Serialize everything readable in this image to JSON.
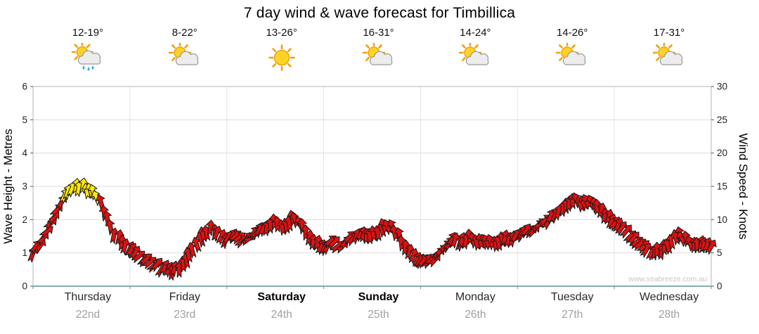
{
  "title": "7 day wind & wave forecast for Timbillica",
  "watermark": "www.seabreeze.com.au",
  "days": [
    {
      "name": "Thursday",
      "date": "22nd",
      "temp": "12-19°",
      "icon": "sun-cloud-rain",
      "weekend": false
    },
    {
      "name": "Friday",
      "date": "23rd",
      "temp": "8-22°",
      "icon": "sun-cloud",
      "weekend": false
    },
    {
      "name": "Saturday",
      "date": "24th",
      "temp": "13-26°",
      "icon": "sun",
      "weekend": true
    },
    {
      "name": "Sunday",
      "date": "25th",
      "temp": "16-31°",
      "icon": "sun-cloud",
      "weekend": true
    },
    {
      "name": "Monday",
      "date": "26th",
      "temp": "14-24°",
      "icon": "sun-cloud",
      "weekend": false
    },
    {
      "name": "Tuesday",
      "date": "27th",
      "temp": "14-26°",
      "icon": "sun-cloud",
      "weekend": false
    },
    {
      "name": "Wednesday",
      "date": "28th",
      "temp": "17-31°",
      "icon": "sun-cloud",
      "weekend": false
    }
  ],
  "chart_data": {
    "type": "line",
    "marker": "wind-arrow",
    "title": "7 day wind & wave forecast for Timbillica",
    "left_axis": {
      "label": "Wave Height - Metres",
      "ticks": [
        0,
        1,
        2,
        3,
        4,
        5,
        6
      ],
      "range": [
        0,
        6
      ]
    },
    "right_axis": {
      "label": "Wind Speed - Knots",
      "ticks": [
        0,
        5,
        10,
        15,
        20,
        25,
        30
      ],
      "range": [
        0,
        30
      ]
    },
    "x_axis": {
      "days": [
        "Thursday",
        "Friday",
        "Saturday",
        "Sunday",
        "Monday",
        "Tuesday",
        "Wednesday"
      ],
      "dates": [
        "22nd",
        "23rd",
        "24th",
        "25th",
        "26th",
        "27th",
        "28th"
      ]
    },
    "sample_step_hours": 2,
    "hours_range": [
      0,
      168
    ],
    "wind_knots": [
      5,
      6.5,
      9,
      11.5,
      14,
      14.8,
      15,
      14.2,
      13.5,
      10.5,
      8,
      6.5,
      5.5,
      4.5,
      3.8,
      3.2,
      2.7,
      2.3,
      2.5,
      4,
      6,
      7.5,
      8.5,
      7.5,
      7,
      7.5,
      7,
      7.5,
      8.5,
      9,
      9.5,
      9,
      10,
      9.5,
      8,
      6.5,
      6,
      6.5,
      6,
      7,
      7.5,
      8,
      7.5,
      8.5,
      9.2,
      8,
      6,
      4.5,
      3.8,
      3.5,
      4.5,
      6,
      7,
      6.5,
      7.2,
      6.5,
      7,
      6.5,
      7,
      7.2,
      7.5,
      8,
      8.5,
      9.5,
      10,
      11,
      12,
      12.8,
      12.3,
      12.8,
      11.5,
      10.5,
      9.5,
      8.5,
      7.5,
      6.5,
      5.5,
      5,
      5.5,
      6.5,
      7.5,
      7,
      6,
      6.5,
      6
    ],
    "wind_dir_deg": [
      25,
      40,
      50,
      45,
      30,
      15,
      0,
      -10,
      -20,
      -15,
      0,
      15,
      25,
      40,
      50,
      45,
      30,
      15,
      0,
      -10,
      -20,
      -15,
      0,
      15,
      25,
      40,
      50,
      45,
      30,
      15,
      0,
      -10,
      -20,
      -15,
      0,
      15,
      25,
      40,
      50,
      45,
      30,
      15,
      0,
      -10,
      -20,
      -15,
      0,
      15,
      25,
      40,
      50,
      45,
      30,
      15,
      0,
      -10,
      -20,
      -15,
      0,
      15,
      25,
      40,
      50,
      45,
      30,
      15,
      0,
      -10,
      -20,
      -15,
      0,
      15,
      25,
      40,
      50,
      45,
      30,
      15,
      0,
      -10,
      -20,
      -15,
      0,
      15,
      25
    ],
    "yellow_threshold_knots": 13.2,
    "colors": {
      "normal": "#dd1111",
      "strong": "#ffe70a",
      "outline": "#1a1a1a"
    },
    "grid": true,
    "legend": "none"
  }
}
